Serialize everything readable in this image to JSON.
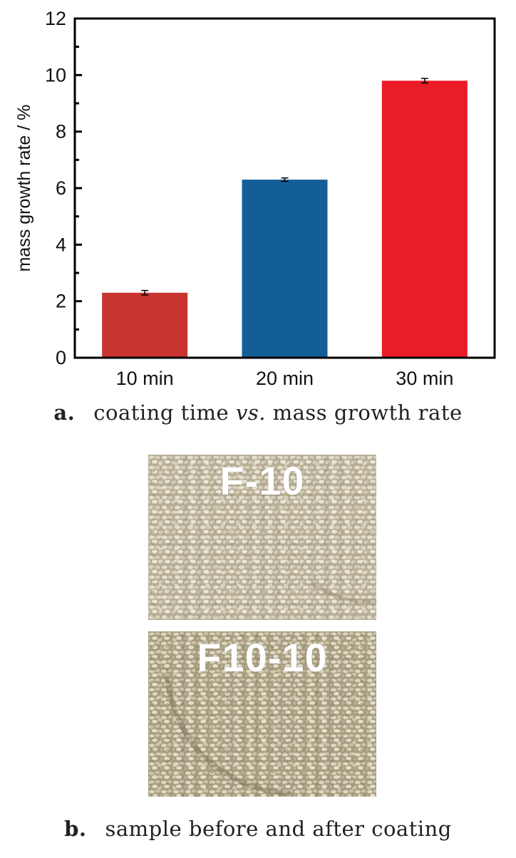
{
  "chart_data": {
    "type": "bar",
    "categories": [
      "10 min",
      "20 min",
      "30 min"
    ],
    "values": [
      2.3,
      6.3,
      9.8
    ],
    "errors": [
      0.08,
      0.06,
      0.08
    ],
    "colors": [
      "#c83430",
      "#145e98",
      "#ea1c26"
    ],
    "title": "",
    "xlabel": "",
    "ylabel": "mass growth rate / %",
    "ylim": [
      0,
      12
    ],
    "yticks": [
      "0",
      "2",
      "4",
      "6",
      "8",
      "10",
      "12"
    ],
    "grid": false
  },
  "caption_a": {
    "label": "a.",
    "text_before": "coating time ",
    "text_italic": "vs.",
    "text_after": " mass growth rate"
  },
  "photos": [
    {
      "label": "F-10",
      "texture": "coated-seeds-texture"
    },
    {
      "label": "F10-10",
      "texture": "coated-seeds-texture"
    }
  ],
  "caption_b": {
    "label": "b.",
    "text": "sample before and after coating"
  }
}
